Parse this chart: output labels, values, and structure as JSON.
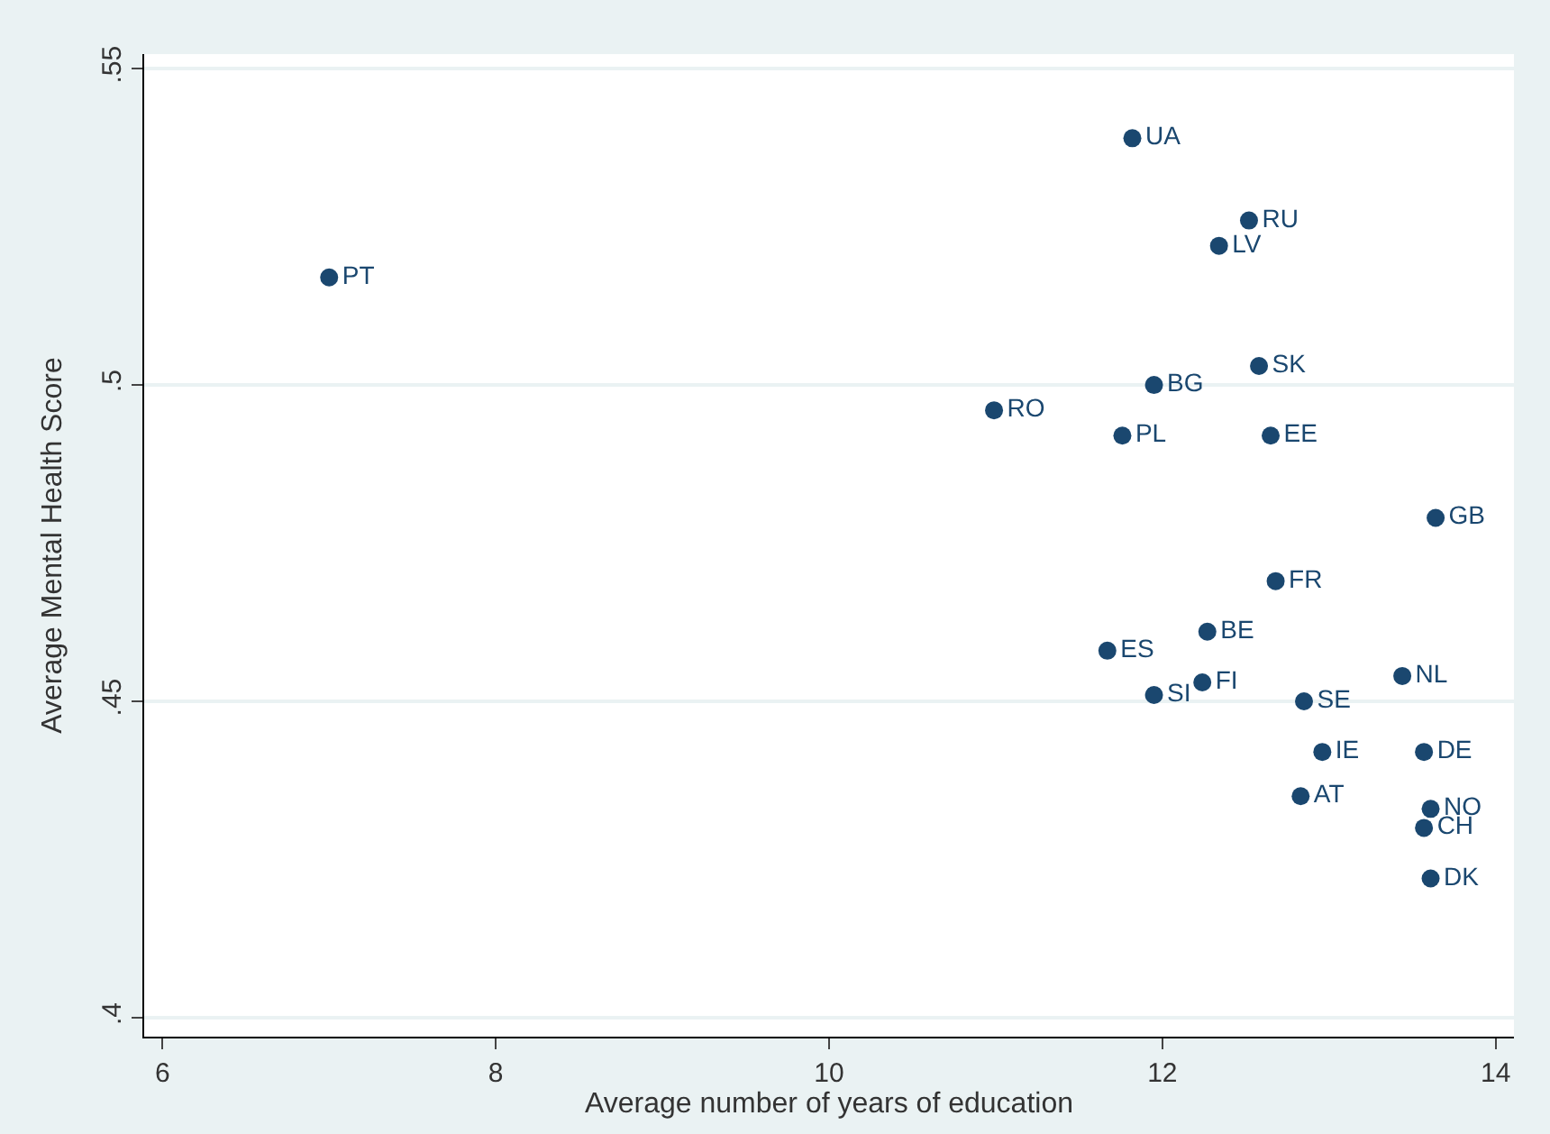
{
  "chart_data": {
    "type": "scatter",
    "xlabel": "Average number of years of education",
    "ylabel": "Average Mental Health Score",
    "x": [
      7.0,
      11.82,
      12.52,
      12.34,
      12.58,
      11.95,
      10.99,
      11.76,
      12.65,
      13.64,
      12.68,
      12.27,
      11.67,
      13.44,
      12.24,
      11.95,
      12.85,
      12.96,
      13.57,
      12.83,
      13.61,
      13.57,
      13.61
    ],
    "series": [
      {
        "color": "#1a476f",
        "values": [
          0.517,
          0.539,
          0.526,
          0.522,
          0.503,
          0.5,
          0.496,
          0.492,
          0.492,
          0.479,
          0.469,
          0.461,
          0.458,
          0.454,
          0.453,
          0.451,
          0.45,
          0.442,
          0.442,
          0.435,
          0.433,
          0.43,
          0.422
        ],
        "value_labels": [
          "PT",
          "UA",
          "RU",
          "LV",
          "SK",
          "BG",
          "RO",
          "PL",
          "EE",
          "GB",
          "FR",
          "BE",
          "ES",
          "NL",
          "FI",
          "SI",
          "SE",
          "IE",
          "DE",
          "AT",
          "NO",
          "CH",
          "DK"
        ]
      }
    ],
    "xlim": [
      5.89,
      14.11
    ],
    "ylim": [
      0.397,
      0.5523
    ],
    "xticks": [
      6,
      8,
      10,
      12,
      14
    ],
    "yticks": [
      {
        "value": 0.4,
        "label": ".4"
      },
      {
        "value": 0.45,
        "label": ".45"
      },
      {
        "value": 0.5,
        "label": ".5"
      },
      {
        "value": 0.55,
        "label": ".55"
      }
    ],
    "grid": "y",
    "marker": "circle"
  }
}
